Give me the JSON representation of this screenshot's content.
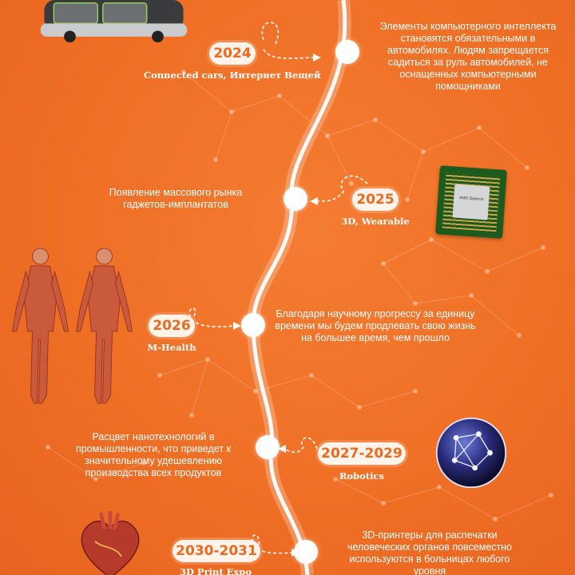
{
  "colors": {
    "background": "#ef6f25",
    "accent": "#ea6a22",
    "line": "#ffffff"
  },
  "timeline": [
    {
      "year": "2024",
      "tag": "Connected cars, Интернет Вещей",
      "description": "Элементы компьютерного интеллекта становятся обязательными в автомобилях. Людям запрещается садиться за руль автомобилей, не оснащенных компьютерными помощниками",
      "illustration": "car-icon"
    },
    {
      "year": "2025",
      "tag": "3D, Wearable",
      "description": "Появление массового рынка гаджетов-имплантатов",
      "illustration": "chip-icon"
    },
    {
      "year": "2026",
      "tag": "M-Health",
      "description": "Благодаря научному прогрессу за единицу времени мы будем продлевать свою жизнь на большее время, чем прошло",
      "illustration": "anatomy-icon"
    },
    {
      "year": "2027-2029",
      "tag": "Robotics",
      "description": "Расцвет нанотехнологий в промышленности, что приведет к значительному удешевлению производства всех продуктов",
      "illustration": "network-sphere-icon"
    },
    {
      "year": "2030-2031",
      "tag": "3D Print Expo",
      "description": "3D-принтеры для распечатки человеческих органов повсеместно используются в больницах любого уровня",
      "illustration": "heart-icon"
    }
  ],
  "chip_label": "AMD Opteron"
}
